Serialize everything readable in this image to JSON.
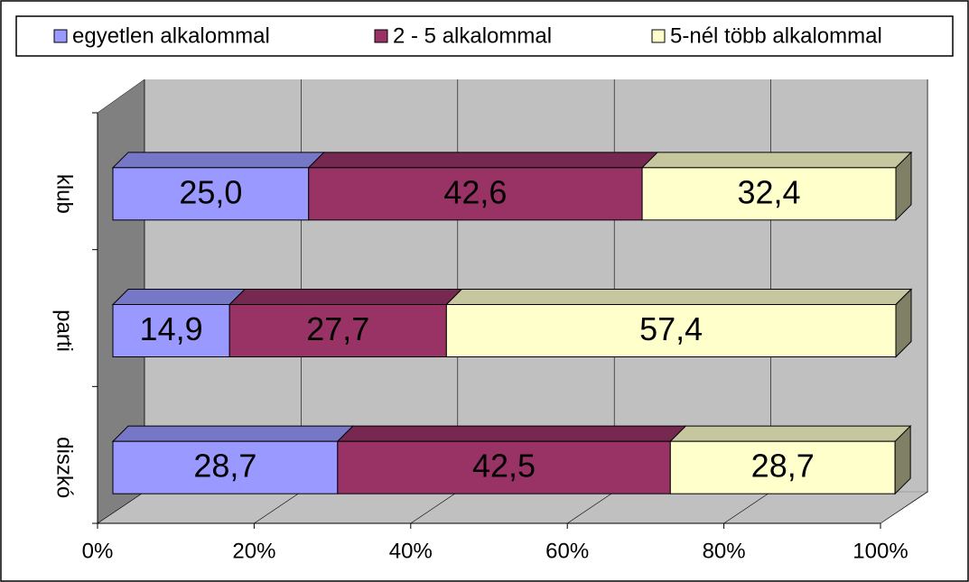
{
  "chart_data": {
    "type": "stacked-bar-horizontal-3d",
    "categories": [
      "klub",
      "parti",
      "diszkó"
    ],
    "series": [
      {
        "name": "egyetlen alkalommal",
        "color": "#9999ff",
        "values": [
          25.0,
          14.9,
          28.7
        ],
        "value_labels": [
          "25,0",
          "14,9",
          "28,7"
        ]
      },
      {
        "name": "2 - 5 alkalommal",
        "color": "#993366",
        "values": [
          42.6,
          27.7,
          42.5
        ],
        "value_labels": [
          "42,6",
          "27,7",
          "42,5"
        ]
      },
      {
        "name": "5-nél több alkalommal",
        "color": "#ffffcc",
        "values": [
          32.4,
          57.4,
          28.7
        ],
        "value_labels": [
          "32,4",
          "57,4",
          "28,7"
        ]
      }
    ],
    "xlim": [
      0,
      100
    ],
    "xticks": [
      {
        "value": 0,
        "label": "0%"
      },
      {
        "value": 20,
        "label": "20%"
      },
      {
        "value": 40,
        "label": "40%"
      },
      {
        "value": 60,
        "label": "60%"
      },
      {
        "value": 80,
        "label": "80%"
      },
      {
        "value": 100,
        "label": "100%"
      }
    ],
    "grid": true,
    "legend": "top"
  }
}
